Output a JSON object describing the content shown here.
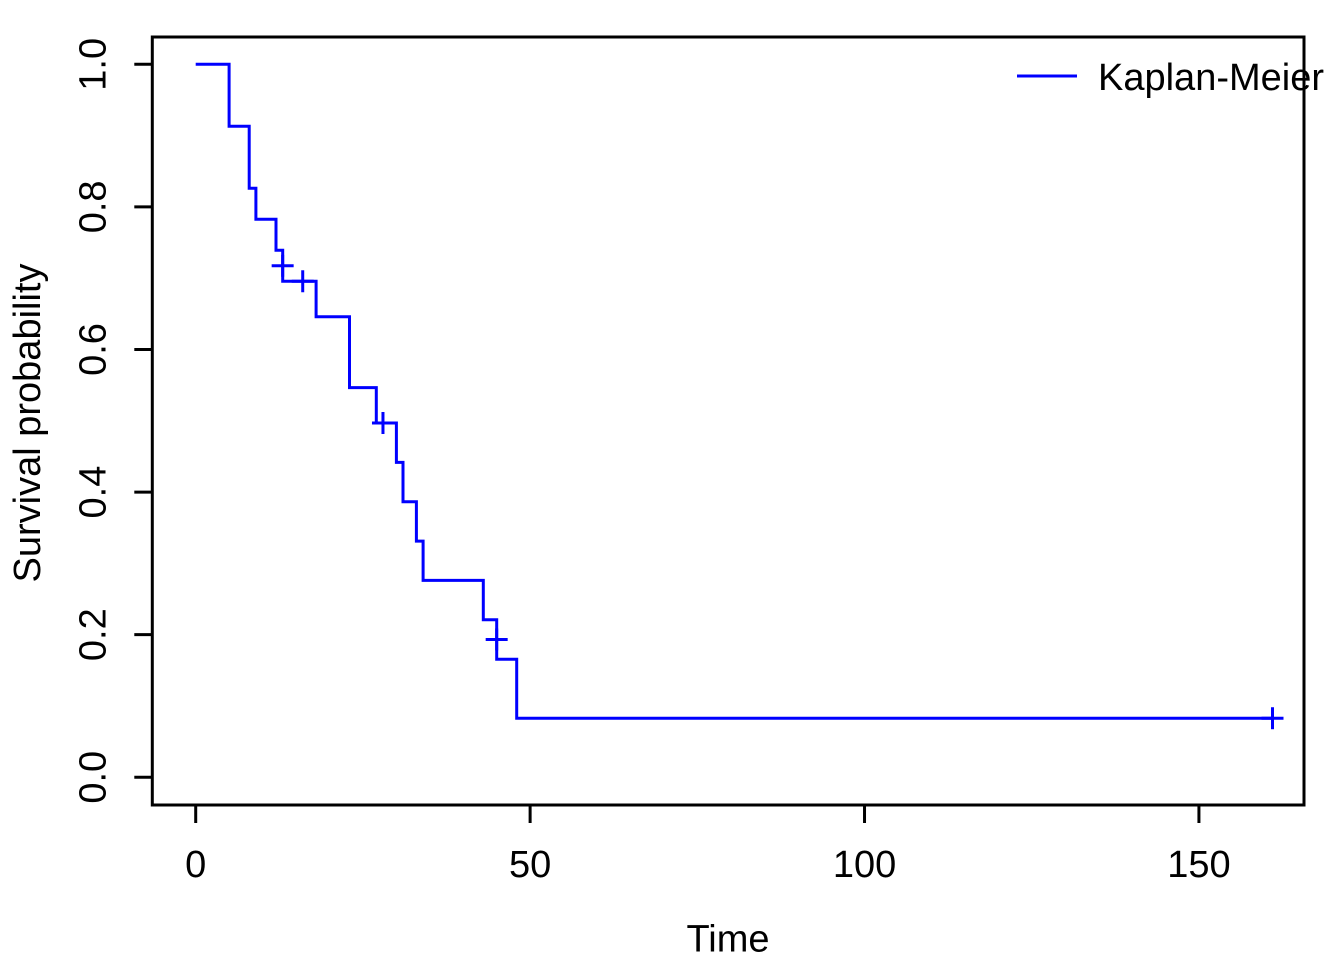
{
  "chart_data": {
    "type": "line",
    "subtype": "kaplan-meier-step-curve",
    "title": "",
    "xlabel": "Time",
    "ylabel": "Survival probability",
    "grid": false,
    "background_color": "#FFFFFF",
    "axis_color": "#000000",
    "line_color": "#0000FF",
    "legend": {
      "position": "top-right",
      "frame": false,
      "entries": [
        {
          "label": "Kaplan-Meier",
          "color": "#0000FF",
          "style": "solid-line"
        }
      ]
    },
    "x_ticks": {
      "values": [
        0,
        50,
        100,
        150
      ],
      "labels": [
        "0",
        "50",
        "100",
        "150"
      ]
    },
    "y_ticks": {
      "values": [
        0,
        0.2,
        0.4,
        0.6,
        0.8,
        1.0
      ],
      "labels": [
        "0.0",
        "0.2",
        "0.4",
        "0.6",
        "0.8",
        "1.0"
      ]
    },
    "xlim": [
      -6.49,
      165.71
    ],
    "ylim": [
      -0.0389,
      1.0383
    ],
    "km_steps": [
      {
        "t": 0,
        "s": 1.0
      },
      {
        "t": 5,
        "s": 0.913
      },
      {
        "t": 8,
        "s": 0.8261
      },
      {
        "t": 9,
        "s": 0.7826
      },
      {
        "t": 12,
        "s": 0.7391
      },
      {
        "t": 13,
        "s": 0.6957
      },
      {
        "t": 18,
        "s": 0.646
      },
      {
        "t": 23,
        "s": 0.5466
      },
      {
        "t": 27,
        "s": 0.4969
      },
      {
        "t": 30,
        "s": 0.4417
      },
      {
        "t": 31,
        "s": 0.3865
      },
      {
        "t": 33,
        "s": 0.3313
      },
      {
        "t": 34,
        "s": 0.2761
      },
      {
        "t": 43,
        "s": 0.2209
      },
      {
        "t": 45,
        "s": 0.1656
      },
      {
        "t": 48,
        "s": 0.0828
      }
    ],
    "curve_end_t": 161,
    "censor_marks": [
      {
        "t": 13,
        "s": 0.7174
      },
      {
        "t": 16,
        "s": 0.6957
      },
      {
        "t": 28,
        "s": 0.4969
      },
      {
        "t": 45,
        "s": 0.1933
      },
      {
        "t": 161,
        "s": 0.0828
      }
    ]
  }
}
